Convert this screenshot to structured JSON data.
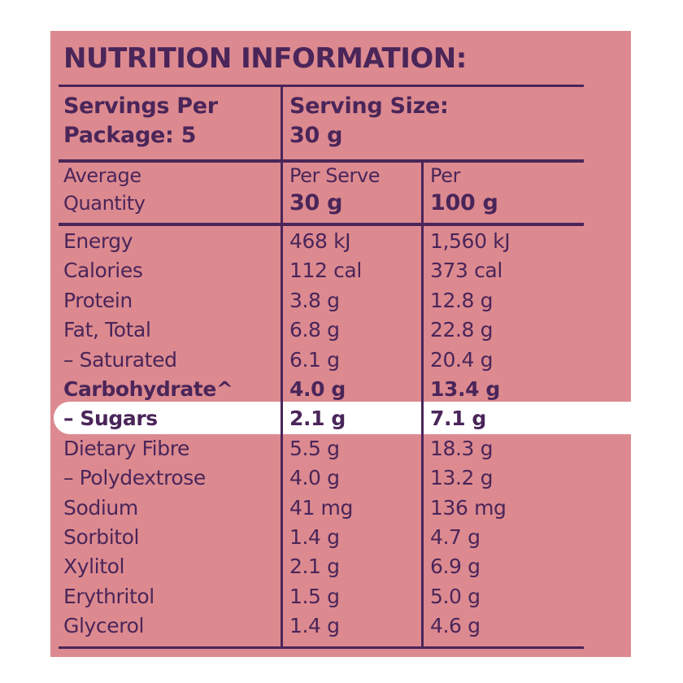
{
  "title": "NUTRITION INFORMATION:",
  "servings": {
    "per_package_line1": "Servings Per",
    "per_package_line2": "Package: 5",
    "size_line1": "Serving Size:",
    "size_line2": "30 g"
  },
  "columns": {
    "avg_line1": "Average",
    "avg_line2": "Quantity",
    "serve_line1": "Per Serve",
    "serve_line2": "30 g",
    "per100_line1": "Per",
    "per100_line2": "100 g"
  },
  "rows": [
    {
      "label": "Energy",
      "serve": "468 kJ",
      "per100": "1,560 kJ",
      "bold": false,
      "highlight": false
    },
    {
      "label": "Calories",
      "serve": "112 cal",
      "per100": "373 cal",
      "bold": false,
      "highlight": false
    },
    {
      "label": "Protein",
      "serve": "3.8 g",
      "per100": "12.8 g",
      "bold": false,
      "highlight": false
    },
    {
      "label": "Fat, Total",
      "serve": "6.8 g",
      "per100": "22.8 g",
      "bold": false,
      "highlight": false
    },
    {
      "label": " – Saturated",
      "serve": "6.1 g",
      "per100": "20.4 g",
      "bold": false,
      "highlight": false
    },
    {
      "label": "Carbohydrate^",
      "serve": "4.0 g",
      "per100": "13.4 g",
      "bold": true,
      "highlight": false
    },
    {
      "label": "– Sugars",
      "serve": "2.1 g",
      "per100": "7.1 g",
      "bold": true,
      "highlight": true
    },
    {
      "label": "Dietary Fibre",
      "serve": "5.5 g",
      "per100": "18.3 g",
      "bold": false,
      "highlight": false
    },
    {
      "label": " – Polydextrose",
      "serve": "4.0 g",
      "per100": "13.2 g",
      "bold": false,
      "highlight": false
    },
    {
      "label": "Sodium",
      "serve": "41 mg",
      "per100": "136 mg",
      "bold": false,
      "highlight": false
    },
    {
      "label": "Sorbitol",
      "serve": "1.4 g",
      "per100": "4.7 g",
      "bold": false,
      "highlight": false
    },
    {
      "label": "Xylitol",
      "serve": "2.1 g",
      "per100": "6.9 g",
      "bold": false,
      "highlight": false
    },
    {
      "label": "Erythritol",
      "serve": "1.5 g",
      "per100": "5.0 g",
      "bold": false,
      "highlight": false
    },
    {
      "label": "Glycerol",
      "serve": "1.4 g",
      "per100": "4.6 g",
      "bold": false,
      "highlight": false
    }
  ],
  "colors": {
    "panel": "#dc8a90",
    "ink": "#4a2559",
    "highlight": "#ffffff"
  }
}
